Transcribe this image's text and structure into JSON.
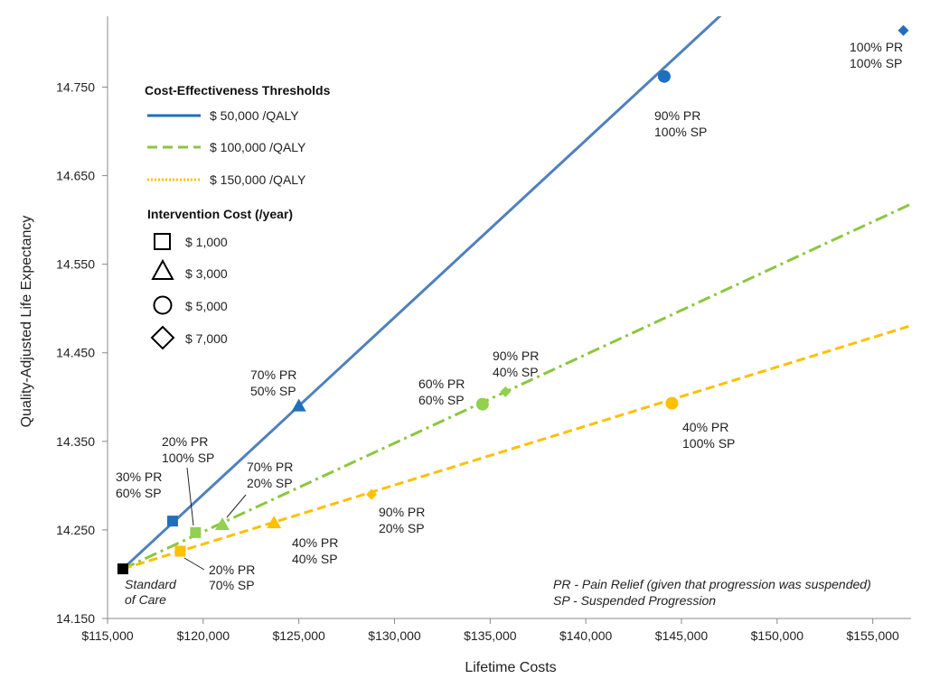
{
  "chart_data": {
    "type": "scatter",
    "title": "",
    "xlabel": "Lifetime Costs",
    "ylabel": "Quality-Adjusted Life Expectancy",
    "xlim": [
      115000,
      157000
    ],
    "ylim": [
      14.15,
      14.83
    ],
    "x_ticks": [
      115000,
      120000,
      125000,
      130000,
      135000,
      140000,
      145000,
      150000,
      155000
    ],
    "x_tick_labels": [
      "$115,000",
      "$120,000",
      "$125,000",
      "$130,000",
      "$135,000",
      "$140,000",
      "$145,000",
      "$150,000",
      "$155,000"
    ],
    "y_ticks": [
      14.15,
      14.25,
      14.35,
      14.45,
      14.55,
      14.65,
      14.75
    ],
    "y_tick_labels": [
      "14.150",
      "14.250",
      "14.350",
      "14.450",
      "14.550",
      "14.650",
      "14.750"
    ],
    "origin": {
      "x": 115800,
      "y": 14.206
    },
    "thresholds": [
      {
        "name": "$ 50,000 /QALY",
        "wtp": 50000,
        "color": "#4F81BD",
        "style": "solid"
      },
      {
        "name": "$ 100,000 /QALY",
        "wtp": 100000,
        "color": "#8CC63F",
        "style": "dashdot"
      },
      {
        "name": "$ 150,000 /QALY",
        "wtp": 150000,
        "color": "#FFC000",
        "style": "dashed"
      }
    ],
    "points": [
      {
        "label": "Standard of Care",
        "x": 115800,
        "y": 14.206,
        "shape": "square",
        "color": "#000000"
      },
      {
        "label": "30% PR 60% SP",
        "x": 118400,
        "y": 14.26,
        "shape": "square",
        "color": "#1F6FBF"
      },
      {
        "label": "20% PR 100% SP",
        "x": 119600,
        "y": 14.247,
        "shape": "square",
        "color": "#92D050"
      },
      {
        "label": "20% PR 70% SP",
        "x": 118800,
        "y": 14.226,
        "shape": "square",
        "color": "#FFC000"
      },
      {
        "label": "70% PR 50% SP",
        "x": 125000,
        "y": 14.39,
        "shape": "triangle",
        "color": "#1F6FBF"
      },
      {
        "label": "70% PR 20% SP",
        "x": 121000,
        "y": 14.256,
        "shape": "triangle",
        "color": "#92D050"
      },
      {
        "label": "40% PR 40% SP",
        "x": 123700,
        "y": 14.258,
        "shape": "triangle",
        "color": "#FFC000"
      },
      {
        "label": "90% PR 100% SP",
        "x": 144100,
        "y": 14.762,
        "shape": "circle",
        "color": "#1F6FBF"
      },
      {
        "label": "60% PR 60% SP",
        "x": 134600,
        "y": 14.392,
        "shape": "circle",
        "color": "#92D050"
      },
      {
        "label": "40% PR 100% SP",
        "x": 144500,
        "y": 14.393,
        "shape": "circle",
        "color": "#FFC000"
      },
      {
        "label": "100% PR 100% SP",
        "x": 156600,
        "y": 14.814,
        "shape": "diamond",
        "color": "#1F6FBF"
      },
      {
        "label": "90% PR 40% SP",
        "x": 135800,
        "y": 14.406,
        "shape": "diamond",
        "color": "#92D050"
      },
      {
        "label": "90% PR 20% SP",
        "x": 128800,
        "y": 14.29,
        "shape": "diamond",
        "color": "#FFC000"
      }
    ]
  },
  "labels": {
    "soc_1": "Standard",
    "soc_2": "of Care",
    "p30_60_a": "30% PR",
    "p30_60_b": "60% SP",
    "p20_100_a": "20% PR",
    "p20_100_b": "100% SP",
    "p20_70_a": "20% PR",
    "p20_70_b": "70% SP",
    "p70_50_a": "70% PR",
    "p70_50_b": "50% SP",
    "p70_20_a": "70% PR",
    "p70_20_b": "20% SP",
    "p40_40_a": "40% PR",
    "p40_40_b": "40% SP",
    "p90_100_a": "90% PR",
    "p90_100_b": "100% SP",
    "p60_60_a": "60% PR",
    "p60_60_b": "60% SP",
    "p40_100_a": "40% PR",
    "p40_100_b": "100% SP",
    "p100_100_a": "100% PR",
    "p100_100_b": "100% SP",
    "p90_40_a": "90% PR",
    "p90_40_b": "40% SP",
    "p90_20_a": "90% PR",
    "p90_20_b": "20% SP"
  },
  "legend": {
    "thresholds_title": "Cost-Effectiveness Thresholds",
    "threshold_labels": [
      "$ 50,000 /QALY",
      "$ 100,000 /QALY",
      "$ 150,000 /QALY"
    ],
    "cost_title": "Intervention Cost (/year)",
    "cost_labels": [
      "$ 1,000",
      "$ 3,000",
      "$ 5,000",
      "$ 7,000"
    ]
  },
  "footnote": {
    "line1": "PR - Pain Relief (given that progression was suspended)",
    "line2": "SP - Suspended Progression"
  }
}
